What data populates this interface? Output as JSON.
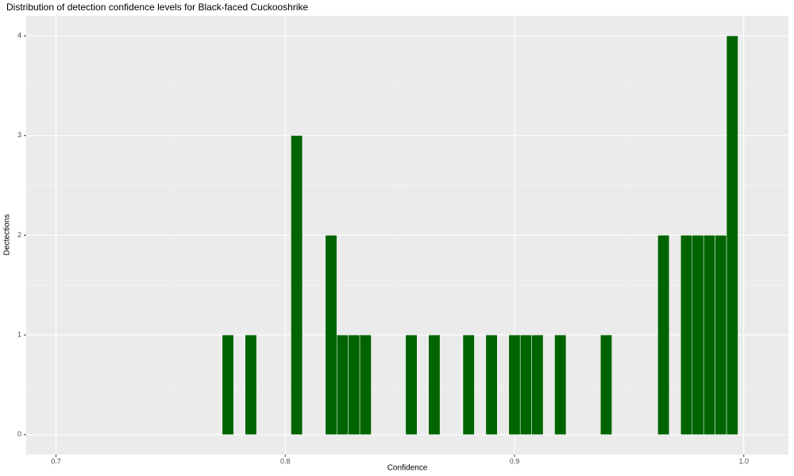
{
  "chart_data": {
    "type": "histogram",
    "title": "Distribution of detection confidence levels for Black-faced Cuckooshrike",
    "x_label": "Confidence",
    "y_label": "Dectections",
    "bins": [
      0.7725,
      0.7775,
      0.7825,
      0.7875,
      0.7925,
      0.7975,
      0.8025,
      0.8075,
      0.8125,
      0.8175,
      0.8225,
      0.8275,
      0.8325,
      0.8375,
      0.8425,
      0.8475,
      0.8525,
      0.8575,
      0.8625,
      0.8675,
      0.8725,
      0.8775,
      0.8825,
      0.8875,
      0.8925,
      0.8975,
      0.9025,
      0.9075,
      0.9125,
      0.9175,
      0.9225,
      0.9275,
      0.9325,
      0.9375,
      0.9425,
      0.9475,
      0.9525,
      0.9575,
      0.9625,
      0.9675,
      0.9725,
      0.9775,
      0.9825,
      0.9875,
      0.9925,
      0.9975
    ],
    "values": [
      1,
      0,
      1,
      0,
      0,
      0,
      3,
      0,
      0,
      2,
      1,
      1,
      1,
      0,
      0,
      0,
      1,
      0,
      1,
      0,
      0,
      1,
      0,
      1,
      0,
      1,
      1,
      1,
      0,
      1,
      0,
      0,
      0,
      1,
      0,
      0,
      0,
      0,
      2,
      0,
      2,
      2,
      2,
      2,
      4
    ],
    "color": "#006400",
    "xlim": [
      0.687,
      1.0195
    ],
    "xticks": [
      0.7,
      0.8,
      0.9,
      {
        "value": 1,
        "label": "1.0"
      }
    ],
    "ylim": [
      -0.2,
      4.2
    ],
    "yticks": [
      0,
      1,
      2,
      3,
      4
    ],
    "grid": true
  }
}
